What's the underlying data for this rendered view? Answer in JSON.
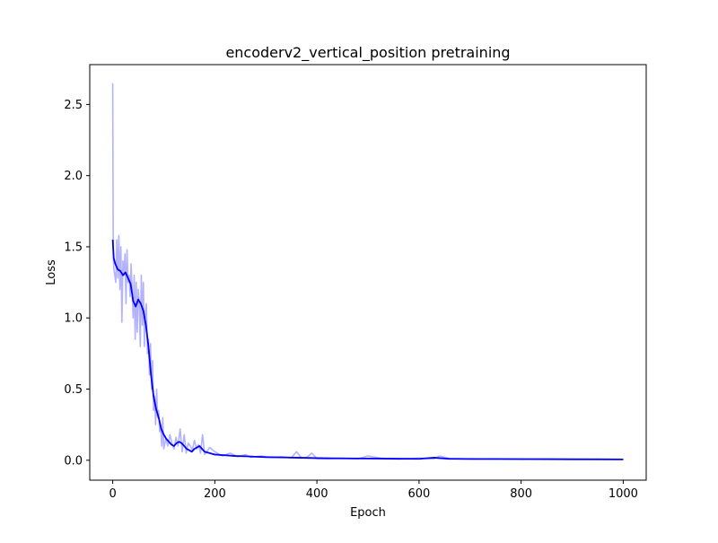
{
  "chart_data": {
    "type": "line",
    "title": "encoderv2_vertical_position pretraining",
    "xlabel": "Epoch",
    "ylabel": "Loss",
    "xlim": [
      -45,
      1045
    ],
    "ylim": [
      -0.14,
      2.78
    ],
    "xticks": [
      0,
      200,
      400,
      600,
      800,
      1000
    ],
    "yticks": [
      0.0,
      0.5,
      1.0,
      1.5,
      2.0,
      2.5
    ],
    "xtick_labels": [
      "0",
      "200",
      "400",
      "600",
      "800",
      "1000"
    ],
    "ytick_labels": [
      "0.0",
      "0.5",
      "1.0",
      "1.5",
      "2.0",
      "2.5"
    ],
    "grid": false,
    "series": [
      {
        "role": "raw",
        "color": "#0000ff",
        "opacity": 0.3,
        "x": [
          0,
          1,
          2,
          4,
          6,
          8,
          10,
          12,
          14,
          16,
          18,
          20,
          22,
          24,
          26,
          28,
          30,
          32,
          34,
          36,
          38,
          40,
          42,
          44,
          46,
          48,
          50,
          52,
          54,
          56,
          58,
          60,
          62,
          64,
          66,
          68,
          70,
          72,
          74,
          76,
          78,
          80,
          82,
          84,
          86,
          88,
          90,
          92,
          94,
          96,
          98,
          100,
          104,
          108,
          112,
          116,
          120,
          124,
          128,
          132,
          136,
          140,
          144,
          148,
          152,
          156,
          160,
          164,
          168,
          172,
          176,
          180,
          190,
          200,
          215,
          230,
          245,
          260,
          270,
          290,
          310,
          330,
          350,
          360,
          370,
          380,
          390,
          400,
          420,
          450,
          480,
          500,
          530,
          560,
          600,
          630,
          640,
          660,
          700,
          750,
          800,
          850,
          900,
          950,
          1000
        ],
        "y": [
          2.65,
          1.45,
          1.35,
          1.3,
          1.25,
          1.55,
          1.28,
          1.58,
          1.2,
          1.5,
          0.97,
          1.4,
          1.3,
          1.45,
          1.1,
          1.48,
          1.25,
          1.3,
          1.15,
          1.38,
          1.2,
          1.0,
          1.3,
          0.85,
          1.25,
          0.9,
          1.2,
          1.1,
          0.8,
          1.3,
          0.95,
          1.25,
          0.8,
          1.05,
          1.1,
          0.75,
          0.85,
          0.6,
          0.82,
          0.5,
          0.7,
          0.35,
          0.45,
          0.25,
          0.5,
          0.3,
          0.35,
          0.2,
          0.25,
          0.1,
          0.3,
          0.08,
          0.15,
          0.1,
          0.18,
          0.12,
          0.08,
          0.16,
          0.1,
          0.22,
          0.06,
          0.18,
          0.05,
          0.12,
          0.1,
          0.07,
          0.14,
          0.08,
          0.11,
          0.05,
          0.18,
          0.04,
          0.09,
          0.06,
          0.03,
          0.05,
          0.025,
          0.04,
          0.02,
          0.03,
          0.02,
          0.025,
          0.018,
          0.06,
          0.015,
          0.02,
          0.05,
          0.012,
          0.01,
          0.015,
          0.01,
          0.03,
          0.012,
          0.008,
          0.015,
          0.01,
          0.03,
          0.012,
          0.008,
          0.01,
          0.006,
          0.009,
          0.006,
          0.008,
          0.006
        ]
      },
      {
        "role": "smoothed",
        "color": "#0000ff",
        "opacity": 1.0,
        "x": [
          0,
          2,
          5,
          10,
          15,
          20,
          25,
          30,
          35,
          40,
          45,
          50,
          55,
          60,
          65,
          70,
          75,
          80,
          85,
          90,
          95,
          100,
          105,
          110,
          115,
          120,
          125,
          130,
          135,
          140,
          145,
          150,
          155,
          160,
          165,
          170,
          175,
          180,
          190,
          200,
          220,
          240,
          260,
          280,
          300,
          330,
          360,
          400,
          450,
          500,
          550,
          600,
          630,
          640,
          660,
          700,
          800,
          900,
          1000
        ],
        "y": [
          1.55,
          1.42,
          1.38,
          1.34,
          1.33,
          1.3,
          1.32,
          1.28,
          1.24,
          1.12,
          1.08,
          1.13,
          1.1,
          1.05,
          0.95,
          0.8,
          0.6,
          0.45,
          0.36,
          0.3,
          0.22,
          0.18,
          0.15,
          0.13,
          0.11,
          0.1,
          0.12,
          0.13,
          0.12,
          0.1,
          0.08,
          0.07,
          0.06,
          0.08,
          0.09,
          0.1,
          0.08,
          0.06,
          0.05,
          0.04,
          0.035,
          0.03,
          0.028,
          0.025,
          0.022,
          0.02,
          0.018,
          0.015,
          0.013,
          0.012,
          0.011,
          0.01,
          0.018,
          0.015,
          0.01,
          0.009,
          0.008,
          0.007,
          0.006
        ]
      }
    ]
  }
}
